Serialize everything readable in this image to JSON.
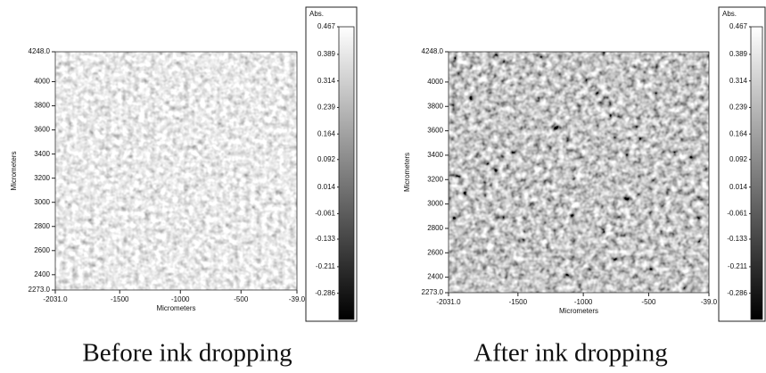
{
  "chart_data": [
    {
      "type": "image-map",
      "xlabel": "Micrometers",
      "ylabel": "Micrometers",
      "xlim": [
        -2031,
        -39
      ],
      "xticks": [
        {
          "value": -2031,
          "label": "-2031.0"
        },
        -1500,
        -1000,
        -500,
        {
          "value": -39,
          "label": "-39.0"
        }
      ],
      "ylim": [
        2273,
        4248
      ],
      "yticks": [
        {
          "value": 2273,
          "label": "2273.0"
        },
        2400,
        2600,
        2800,
        3000,
        3200,
        3400,
        3600,
        3800,
        4000,
        {
          "value": 4248,
          "label": "4248.0"
        }
      ],
      "colorbar": {
        "title": "Abs.",
        "lim": [
          -0.36,
          0.467
        ],
        "ticks": [
          0.467,
          0.389,
          0.314,
          0.239,
          0.164,
          0.092,
          0.014,
          -0.061,
          -0.133,
          -0.211,
          -0.286
        ]
      },
      "caption": "Before ink dropping"
    },
    {
      "type": "image-map",
      "xlabel": "Micrometers",
      "ylabel": "Micrometers",
      "xlim": [
        -2031,
        -39
      ],
      "xticks": [
        {
          "value": -2031,
          "label": "-2031.0"
        },
        -1500,
        -1000,
        -500,
        {
          "value": -39,
          "label": "-39.0"
        }
      ],
      "ylim": [
        2273,
        4248
      ],
      "yticks": [
        {
          "value": 2273,
          "label": "2273.0"
        },
        2400,
        2600,
        2800,
        3000,
        3200,
        3400,
        3600,
        3800,
        4000,
        {
          "value": 4248,
          "label": "4248.0"
        }
      ],
      "colorbar": {
        "title": "Abs.",
        "lim": [
          -0.36,
          0.467
        ],
        "ticks": [
          0.467,
          0.389,
          0.314,
          0.239,
          0.164,
          0.092,
          0.014,
          -0.061,
          -0.133,
          -0.211,
          -0.286
        ]
      },
      "caption": "After ink dropping"
    }
  ]
}
